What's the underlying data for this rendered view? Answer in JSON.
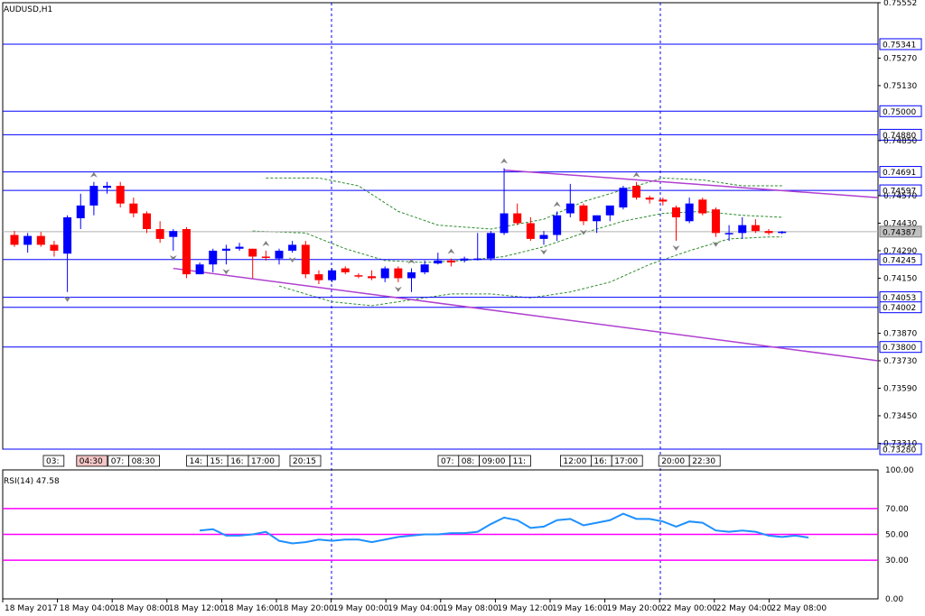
{
  "window": {
    "symbol_label": "AUDUSD,H1"
  },
  "indicator": {
    "label": "RSI(14) 47.58",
    "levels": [
      70,
      50,
      30
    ]
  },
  "colors": {
    "bull": "#0000ff",
    "bear": "#ff0000",
    "bear_doji": "#ff0000",
    "hline": "#0000ff",
    "trend": "#b040d0",
    "channel": "#2e8b2e",
    "rsi": "#1e90ff",
    "rsi_level": "#ff00ff",
    "current_price_line": "#b0b0b0",
    "fractal": "#808080"
  },
  "chart_data": {
    "type": "candlestick",
    "title": "AUDUSD,H1",
    "ylim": [
      0.7328,
      0.7555
    ],
    "y_ticks": [
      "0.75552",
      "0.75270",
      "0.75130",
      "0.74850",
      "0.74570",
      "0.74430",
      "0.74290",
      "0.74150",
      "0.73870",
      "0.73730",
      "0.73590",
      "0.73450",
      "0.73310"
    ],
    "horizontal_levels": [
      "0.75341",
      "0.75000",
      "0.74880",
      "0.74691",
      "0.74597",
      "0.74245",
      "0.74053",
      "0.74002",
      "0.73800",
      "0.73280"
    ],
    "current_price": "0.74387",
    "x_labels": [
      "18 May 2017",
      "18 May 04:00",
      "18 May 08:00",
      "18 May 12:00",
      "18 May 16:00",
      "18 May 20:00",
      "19 May 00:00",
      "19 May 04:00",
      "19 May 08:00",
      "19 May 12:00",
      "19 May 16:00",
      "19 May 20:00",
      "22 May 00:00",
      "22 May 04:00",
      "22 May 08:00"
    ],
    "time_labels": [
      "03:",
      "04:30",
      "07:",
      "08:30",
      "14:",
      "15:",
      "16:",
      "17:00",
      "20:15",
      "07:",
      "08:",
      "09:00",
      "11:",
      "12:00",
      "16:",
      "17:00",
      "20:00",
      "22:30",
      "15"
    ],
    "candles": [
      {
        "o": 0.7437,
        "h": 0.7439,
        "l": 0.7431,
        "c": 0.7432
      },
      {
        "o": 0.7432,
        "h": 0.7438,
        "l": 0.7428,
        "c": 0.74365
      },
      {
        "o": 0.74365,
        "h": 0.74385,
        "l": 0.7431,
        "c": 0.7432
      },
      {
        "o": 0.7432,
        "h": 0.7434,
        "l": 0.7426,
        "c": 0.7429
      },
      {
        "o": 0.74275,
        "h": 0.7447,
        "l": 0.7408,
        "c": 0.7446
      },
      {
        "o": 0.74455,
        "h": 0.7458,
        "l": 0.744,
        "c": 0.7452
      },
      {
        "o": 0.7452,
        "h": 0.7464,
        "l": 0.7447,
        "c": 0.7462
      },
      {
        "o": 0.7461,
        "h": 0.7464,
        "l": 0.7458,
        "c": 0.7462
      },
      {
        "o": 0.7462,
        "h": 0.7464,
        "l": 0.7451,
        "c": 0.7453
      },
      {
        "o": 0.7453,
        "h": 0.7456,
        "l": 0.7446,
        "c": 0.7448
      },
      {
        "o": 0.7448,
        "h": 0.7449,
        "l": 0.7438,
        "c": 0.744
      },
      {
        "o": 0.744,
        "h": 0.7444,
        "l": 0.7433,
        "c": 0.7435
      },
      {
        "o": 0.7436,
        "h": 0.744,
        "l": 0.7429,
        "c": 0.7439
      },
      {
        "o": 0.744,
        "h": 0.7441,
        "l": 0.7415,
        "c": 0.7417
      },
      {
        "o": 0.7417,
        "h": 0.7423,
        "l": 0.7417,
        "c": 0.7422
      },
      {
        "o": 0.7422,
        "h": 0.743,
        "l": 0.7418,
        "c": 0.7429
      },
      {
        "o": 0.7429,
        "h": 0.7432,
        "l": 0.7422,
        "c": 0.743
      },
      {
        "o": 0.743,
        "h": 0.7433,
        "l": 0.7429,
        "c": 0.7431
      },
      {
        "o": 0.743,
        "h": 0.743,
        "l": 0.7415,
        "c": 0.7426
      },
      {
        "o": 0.7426,
        "h": 0.7429,
        "l": 0.7424,
        "c": 0.74255
      },
      {
        "o": 0.7425,
        "h": 0.743,
        "l": 0.7422,
        "c": 0.7429
      },
      {
        "o": 0.7429,
        "h": 0.7434,
        "l": 0.7428,
        "c": 0.7432
      },
      {
        "o": 0.7432,
        "h": 0.7434,
        "l": 0.7415,
        "c": 0.7417
      },
      {
        "o": 0.7417,
        "h": 0.7419,
        "l": 0.7412,
        "c": 0.7414
      },
      {
        "o": 0.7414,
        "h": 0.742,
        "l": 0.7413,
        "c": 0.7419
      },
      {
        "o": 0.742,
        "h": 0.7421,
        "l": 0.7417,
        "c": 0.7418
      },
      {
        "o": 0.74165,
        "h": 0.74175,
        "l": 0.7415,
        "c": 0.7416
      },
      {
        "o": 0.7416,
        "h": 0.7419,
        "l": 0.7414,
        "c": 0.7415
      },
      {
        "o": 0.7415,
        "h": 0.7421,
        "l": 0.7413,
        "c": 0.742
      },
      {
        "o": 0.742,
        "h": 0.7421,
        "l": 0.7413,
        "c": 0.7415
      },
      {
        "o": 0.7415,
        "h": 0.742,
        "l": 0.7408,
        "c": 0.7418
      },
      {
        "o": 0.7418,
        "h": 0.7424,
        "l": 0.7417,
        "c": 0.7422
      },
      {
        "o": 0.74225,
        "h": 0.7428,
        "l": 0.7422,
        "c": 0.7424
      },
      {
        "o": 0.7424,
        "h": 0.7425,
        "l": 0.7421,
        "c": 0.7423
      },
      {
        "o": 0.7424,
        "h": 0.7426,
        "l": 0.7423,
        "c": 0.7425
      },
      {
        "o": 0.7425,
        "h": 0.7438,
        "l": 0.7424,
        "c": 0.7425
      },
      {
        "o": 0.7425,
        "h": 0.7439,
        "l": 0.7424,
        "c": 0.7438
      },
      {
        "o": 0.7438,
        "h": 0.7471,
        "l": 0.7437,
        "c": 0.7448
      },
      {
        "o": 0.7448,
        "h": 0.7453,
        "l": 0.7442,
        "c": 0.7443
      },
      {
        "o": 0.7443,
        "h": 0.7446,
        "l": 0.7434,
        "c": 0.7435
      },
      {
        "o": 0.7435,
        "h": 0.7439,
        "l": 0.7432,
        "c": 0.7437
      },
      {
        "o": 0.7437,
        "h": 0.7449,
        "l": 0.7434,
        "c": 0.7447
      },
      {
        "o": 0.7448,
        "h": 0.7463,
        "l": 0.7446,
        "c": 0.7453
      },
      {
        "o": 0.7452,
        "h": 0.7453,
        "l": 0.7442,
        "c": 0.7444
      },
      {
        "o": 0.7444,
        "h": 0.7447,
        "l": 0.7438,
        "c": 0.7447
      },
      {
        "o": 0.7447,
        "h": 0.7451,
        "l": 0.7444,
        "c": 0.7452
      },
      {
        "o": 0.7451,
        "h": 0.7462,
        "l": 0.745,
        "c": 0.7461
      },
      {
        "o": 0.7462,
        "h": 0.7464,
        "l": 0.7455,
        "c": 0.7456
      },
      {
        "o": 0.7456,
        "h": 0.7457,
        "l": 0.7453,
        "c": 0.7455
      },
      {
        "o": 0.7455,
        "h": 0.7456,
        "l": 0.7452,
        "c": 0.7454
      },
      {
        "o": 0.7451,
        "h": 0.7452,
        "l": 0.7434,
        "c": 0.7446
      },
      {
        "o": 0.7444,
        "h": 0.7456,
        "l": 0.7443,
        "c": 0.7453
      },
      {
        "o": 0.7455,
        "h": 0.7456,
        "l": 0.7447,
        "c": 0.7448
      },
      {
        "o": 0.745,
        "h": 0.7451,
        "l": 0.7436,
        "c": 0.7438
      },
      {
        "o": 0.7438,
        "h": 0.7442,
        "l": 0.7434,
        "c": 0.7438
      },
      {
        "o": 0.7438,
        "h": 0.7446,
        "l": 0.7435,
        "c": 0.7442
      },
      {
        "o": 0.7442,
        "h": 0.7445,
        "l": 0.7438,
        "c": 0.7439
      },
      {
        "o": 0.7439,
        "h": 0.744,
        "l": 0.7437,
        "c": 0.7438
      },
      {
        "o": 0.7438,
        "h": 0.7439,
        "l": 0.74375,
        "c": 0.74387
      }
    ],
    "rsi": [
      53,
      54,
      49,
      49,
      50,
      52,
      45,
      43,
      44,
      46,
      45,
      46,
      46,
      44,
      46,
      48,
      49,
      50,
      50,
      51,
      51,
      52,
      58,
      63,
      61,
      55,
      56,
      61,
      62,
      57,
      59,
      61,
      66,
      62,
      62,
      60,
      56,
      60,
      59,
      53,
      52,
      53,
      52,
      49,
      48,
      49,
      47.58
    ]
  }
}
